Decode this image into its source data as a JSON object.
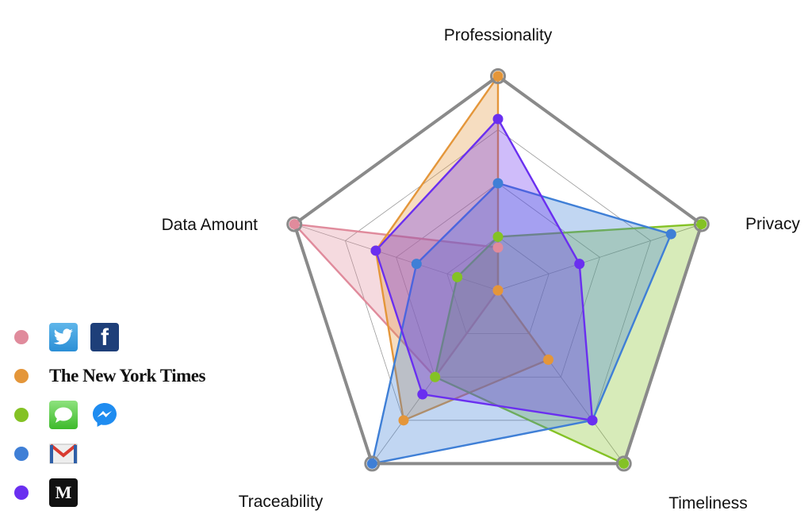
{
  "chart_data": {
    "type": "radar",
    "axes": [
      "Professionality",
      "Privacy",
      "Timeliness",
      "Traceability",
      "Data Amount"
    ],
    "scale_max": 1.0,
    "grid_levels": [
      0.25,
      0.5,
      0.75,
      1.0
    ],
    "colors": {
      "outline": "#8a8a8a",
      "grid": "#9a9a9a"
    },
    "series": [
      {
        "icons": [
          "twitter-icon",
          "facebook-icon"
        ],
        "color": "#e08b9c",
        "values": [
          0.2,
          0.0,
          0.0,
          0.5,
          1.0
        ]
      },
      {
        "icons": [
          "nyt-logo"
        ],
        "color": "#e4963a",
        "values": [
          1.0,
          0.0,
          0.4,
          0.75,
          0.6
        ]
      },
      {
        "icons": [
          "imessage-icon",
          "messenger-icon"
        ],
        "color": "#84c225",
        "values": [
          0.25,
          1.0,
          1.0,
          0.5,
          0.2
        ]
      },
      {
        "icons": [
          "gmail-icon"
        ],
        "color": "#3f7fd6",
        "values": [
          0.5,
          0.85,
          0.75,
          1.0,
          0.4
        ]
      },
      {
        "icons": [
          "medium-icon"
        ],
        "color": "#6a2ff0",
        "values": [
          0.8,
          0.4,
          0.75,
          0.6,
          0.6
        ]
      }
    ]
  },
  "legend": {
    "nyt_label": "The New York Times",
    "facebook_glyph": "f",
    "medium_glyph": "M"
  }
}
